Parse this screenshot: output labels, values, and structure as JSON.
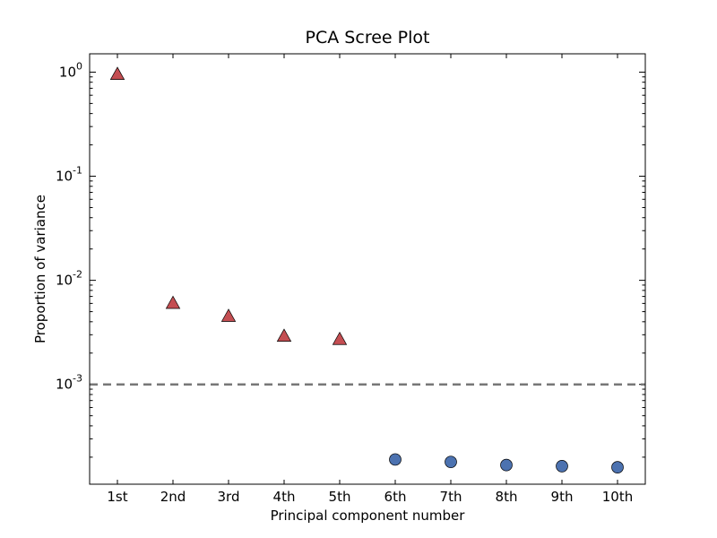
{
  "chart_data": {
    "type": "scatter",
    "title": "PCA Scree Plot",
    "xlabel": "Principal component number",
    "ylabel": "Proportion of variance",
    "yscale": "log",
    "ylim": [
      0.00011,
      1.5
    ],
    "categories": [
      "1st",
      "2nd",
      "3rd",
      "4th",
      "5th",
      "6th",
      "7th",
      "8th",
      "9th",
      "10th"
    ],
    "yticks": [
      {
        "base": "10",
        "exp": "0",
        "value": 1
      },
      {
        "base": "10",
        "exp": "-1",
        "value": 0.1
      },
      {
        "base": "10",
        "exp": "-2",
        "value": 0.01
      },
      {
        "base": "10",
        "exp": "-3",
        "value": 0.001
      }
    ],
    "series": [
      {
        "marker": "triangle",
        "color": "#c44e52",
        "points": [
          {
            "category": "1st",
            "value": 0.95
          },
          {
            "category": "2nd",
            "value": 0.006
          },
          {
            "category": "3rd",
            "value": 0.0045
          },
          {
            "category": "4th",
            "value": 0.0029
          },
          {
            "category": "5th",
            "value": 0.0027
          }
        ]
      },
      {
        "marker": "circle",
        "color": "#4c72b0",
        "points": [
          {
            "category": "6th",
            "value": 0.00019
          },
          {
            "category": "7th",
            "value": 0.00018
          },
          {
            "category": "8th",
            "value": 0.000168
          },
          {
            "category": "9th",
            "value": 0.000164
          },
          {
            "category": "10th",
            "value": 0.00016
          }
        ]
      }
    ],
    "reference_line": {
      "value": 0.001,
      "style": "dashed",
      "color": "#777777"
    },
    "grid": false
  }
}
